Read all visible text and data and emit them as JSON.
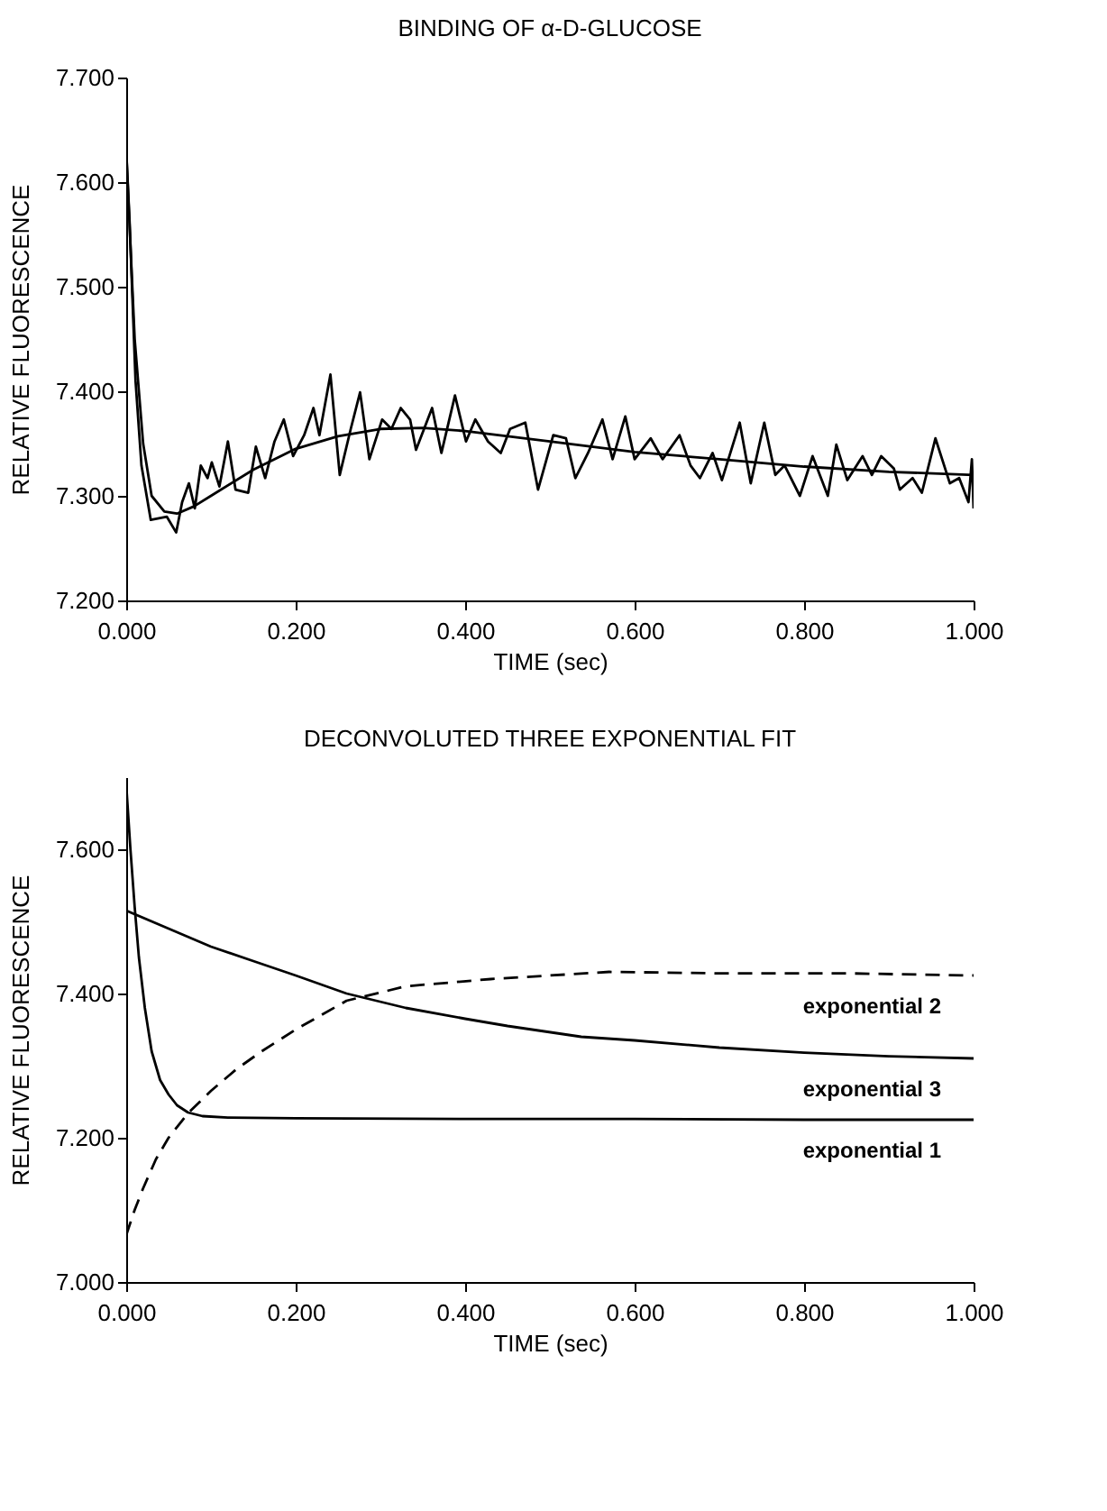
{
  "chart_data": [
    {
      "type": "line",
      "title": "BINDING OF α-D-GLUCOSE",
      "xlabel": "TIME (sec)",
      "ylabel": "RELATIVE FLUORESCENCE",
      "xlim": [
        0,
        1
      ],
      "ylim": [
        7.2,
        7.7
      ],
      "xticks": [
        {
          "value": 0,
          "label": "0.000"
        },
        {
          "value": 0.2,
          "label": "0.200"
        },
        {
          "value": 0.4,
          "label": "0.400"
        },
        {
          "value": 0.6,
          "label": "0.600"
        },
        {
          "value": 0.8,
          "label": "0.800"
        },
        {
          "value": 1,
          "label": "1.000"
        }
      ],
      "yticks": [
        {
          "value": 7.2,
          "label": "7.200"
        },
        {
          "value": 7.3,
          "label": "7.300"
        },
        {
          "value": 7.4,
          "label": "7.400"
        },
        {
          "value": 7.5,
          "label": "7.500"
        },
        {
          "value": 7.6,
          "label": "7.600"
        },
        {
          "value": 7.7,
          "label": "7.700"
        }
      ],
      "grid": false,
      "line_style": "solid",
      "series": [
        {
          "color": "#000000",
          "x": [
            0.0,
            0.004,
            0.011,
            0.018,
            0.029,
            0.048,
            0.059,
            0.066,
            0.074,
            0.081,
            0.088,
            0.096,
            0.101,
            0.11,
            0.12,
            0.129,
            0.144,
            0.153,
            0.164,
            0.175,
            0.186,
            0.197,
            0.21,
            0.221,
            0.228,
            0.241,
            0.252,
            0.265,
            0.276,
            0.287,
            0.302,
            0.313,
            0.324,
            0.335,
            0.342,
            0.361,
            0.372,
            0.388,
            0.401,
            0.412,
            0.427,
            0.442,
            0.453,
            0.471,
            0.486,
            0.504,
            0.519,
            0.53,
            0.545,
            0.562,
            0.574,
            0.589,
            0.6,
            0.619,
            0.633,
            0.653,
            0.666,
            0.677,
            0.692,
            0.703,
            0.724,
            0.737,
            0.753,
            0.766,
            0.777,
            0.795,
            0.81,
            0.828,
            0.838,
            0.851,
            0.869,
            0.88,
            0.891,
            0.906,
            0.913,
            0.928,
            0.939,
            0.955,
            0.972,
            0.983,
            0.994,
            0.998,
            1.0
          ],
          "values": [
            7.631,
            7.562,
            7.41,
            7.329,
            7.277,
            7.28,
            7.265,
            7.294,
            7.312,
            7.288,
            7.329,
            7.317,
            7.332,
            7.309,
            7.352,
            7.306,
            7.303,
            7.347,
            7.317,
            7.352,
            7.373,
            7.338,
            7.358,
            7.384,
            7.358,
            7.416,
            7.32,
            7.364,
            7.399,
            7.335,
            7.373,
            7.364,
            7.384,
            7.373,
            7.344,
            7.384,
            7.341,
            7.396,
            7.352,
            7.373,
            7.352,
            7.341,
            7.364,
            7.37,
            7.306,
            7.358,
            7.355,
            7.317,
            7.341,
            7.373,
            7.335,
            7.376,
            7.335,
            7.355,
            7.335,
            7.358,
            7.329,
            7.317,
            7.341,
            7.315,
            7.37,
            7.312,
            7.37,
            7.32,
            7.329,
            7.3,
            7.338,
            7.3,
            7.349,
            7.315,
            7.338,
            7.32,
            7.338,
            7.326,
            7.306,
            7.317,
            7.303,
            7.355,
            7.312,
            7.317,
            7.294,
            7.335,
            7.288
          ]
        },
        {
          "color": "#000000",
          "x": [
            0,
            0.01,
            0.02,
            0.03,
            0.045,
            0.06,
            0.08,
            0.1,
            0.15,
            0.2,
            0.25,
            0.3,
            0.35,
            0.4,
            0.5,
            0.6,
            0.7,
            0.8,
            0.9,
            1.0
          ],
          "values": [
            7.63,
            7.45,
            7.35,
            7.3,
            7.285,
            7.283,
            7.29,
            7.3,
            7.325,
            7.345,
            7.357,
            7.364,
            7.365,
            7.362,
            7.352,
            7.342,
            7.335,
            7.328,
            7.323,
            7.32
          ]
        }
      ]
    },
    {
      "type": "line",
      "title": "DECONVOLUTED THREE EXPONENTIAL FIT",
      "xlabel": "TIME (sec)",
      "ylabel": "RELATIVE FLUORESCENCE",
      "xlim": [
        0,
        1
      ],
      "ylim": [
        7.0,
        7.7
      ],
      "xticks": [
        {
          "value": 0,
          "label": "0.000"
        },
        {
          "value": 0.2,
          "label": "0.200"
        },
        {
          "value": 0.4,
          "label": "0.400"
        },
        {
          "value": 0.6,
          "label": "0.600"
        },
        {
          "value": 0.8,
          "label": "0.800"
        },
        {
          "value": 1,
          "label": "1.000"
        }
      ],
      "yticks": [
        {
          "value": 7.0,
          "label": "7.000"
        },
        {
          "value": 7.2,
          "label": "7.200"
        },
        {
          "value": 7.4,
          "label": "7.400"
        },
        {
          "value": 7.6,
          "label": "7.600"
        }
      ],
      "grid": false,
      "series": [
        {
          "name": "exponential 2",
          "color": "#000000",
          "line_style": "dashed",
          "x": [
            0,
            0.01,
            0.02,
            0.035,
            0.05,
            0.073,
            0.1,
            0.13,
            0.16,
            0.2,
            0.26,
            0.33,
            0.43,
            0.5,
            0.57,
            0.7,
            0.85,
            1.0
          ],
          "values": [
            7.065,
            7.1,
            7.13,
            7.17,
            7.2,
            7.234,
            7.265,
            7.295,
            7.32,
            7.35,
            7.39,
            7.41,
            7.42,
            7.425,
            7.43,
            7.428,
            7.428,
            7.425
          ]
        },
        {
          "name": "exponential 3",
          "color": "#000000",
          "line_style": "solid",
          "x": [
            0,
            0.05,
            0.1,
            0.15,
            0.2,
            0.26,
            0.33,
            0.4,
            0.45,
            0.537,
            0.6,
            0.7,
            0.8,
            0.9,
            1.0
          ],
          "values": [
            7.515,
            7.49,
            7.465,
            7.445,
            7.425,
            7.4,
            7.38,
            7.365,
            7.355,
            7.34,
            7.335,
            7.325,
            7.318,
            7.313,
            7.31
          ]
        },
        {
          "name": "exponential 1",
          "color": "#000000",
          "line_style": "solid",
          "x": [
            0,
            0.005,
            0.01,
            0.015,
            0.022,
            0.03,
            0.04,
            0.05,
            0.06,
            0.073,
            0.09,
            0.12,
            0.2,
            0.4,
            0.6,
            0.8,
            1.0
          ],
          "values": [
            7.69,
            7.6,
            7.52,
            7.45,
            7.38,
            7.32,
            7.28,
            7.26,
            7.245,
            7.235,
            7.23,
            7.228,
            7.227,
            7.226,
            7.226,
            7.225,
            7.225
          ]
        }
      ]
    }
  ]
}
